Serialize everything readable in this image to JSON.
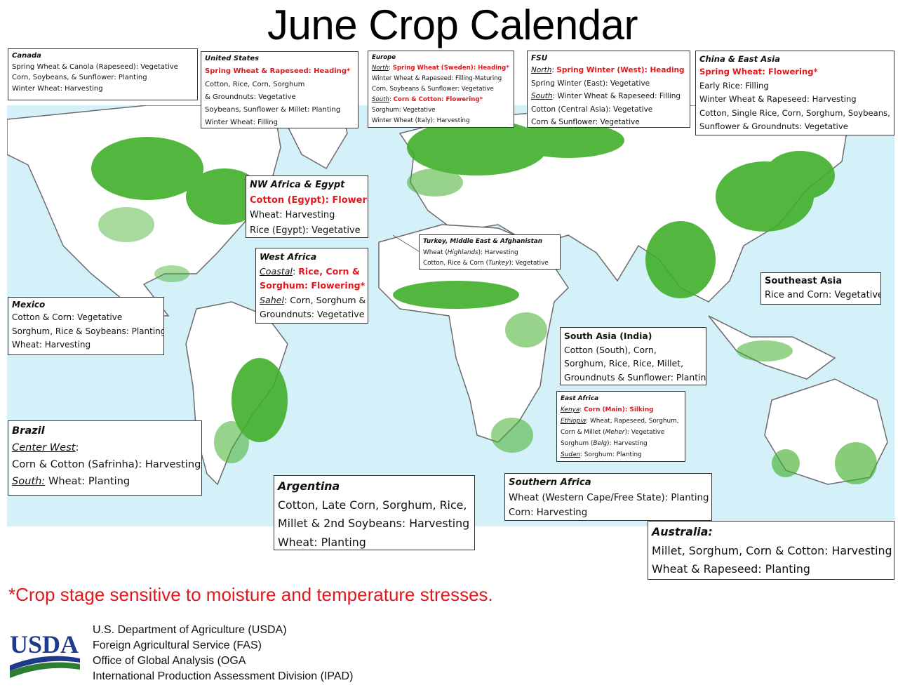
{
  "title": "June Crop Calendar",
  "regions": {
    "canada": {
      "header": "Canada",
      "lines": [
        "Spring Wheat & Canola (Rapeseed): Vegetative",
        "Corn, Soybeans, & Sunflower: Planting",
        "Winter Wheat: Harvesting"
      ]
    },
    "us": {
      "header": "United States",
      "red1": "Spring Wheat & Rapeseed: Heading*",
      "lines": [
        "Cotton, Rice, Corn, Sorghum",
        "& Groundnuts: Vegetative",
        "Soybeans, Sunflower & Millet: Planting",
        "Winter Wheat: Filling"
      ]
    },
    "europe": {
      "header": "Europe",
      "north_label": "North",
      "north_red": "Spring Wheat (Sweden): Heading*",
      "line2": "Winter Wheat & Rapeseed: Filling-Maturing",
      "line3": "Corn, Soybeans & Sunflower: Vegetative",
      "south_label": "South",
      "south_red": "Corn  & Cotton: Flowering*",
      "line5": "Sorghum: Vegetative",
      "line6": "Winter Wheat (Italy): Harvesting"
    },
    "fsu": {
      "header": "FSU",
      "north_label": "North",
      "north_red": "Spring Winter (West): Heading",
      "line2": "Spring Winter (East): Vegetative",
      "south_label": "South",
      "south_text": "Winter Wheat & Rapeseed: Filling",
      "line4": "Cotton (Central Asia): Vegetative",
      "line5": "Corn & Sunflower: Vegetative"
    },
    "china": {
      "header": "China & East Asia",
      "red1": "Spring Wheat: Flowering*",
      "lines": [
        "Early Rice: Filling",
        "Winter Wheat & Rapeseed: Harvesting",
        "Cotton, Single Rice, Corn, Sorghum, Soybeans,",
        "Sunflower & Groundnuts: Vegetative"
      ]
    },
    "nwafrica": {
      "header": "NW Africa & Egypt",
      "red1": "Cotton (Egypt): Flowering",
      "lines": [
        "Wheat: Harvesting",
        "Rice (Egypt): Vegetative"
      ]
    },
    "turkey": {
      "header": "Turkey, Middle East & Afghanistan",
      "l1a": "Wheat (",
      "l1b": "Highlands",
      "l1c": "): Harvesting",
      "l2a": "Cotton, Rice & Corn (",
      "l2b": "Turkey",
      "l2c": "): Vegetative"
    },
    "westafrica": {
      "header": "West Africa",
      "coastal_label": "Coastal",
      "coastal_red1": "Rice, Corn &",
      "coastal_red2": "Sorghum: Flowering*",
      "sahel_label": "Sahel",
      "sahel_text": "Corn, Sorghum &",
      "line4": "Groundnuts: Vegetative"
    },
    "seasia": {
      "header": "Southeast Asia",
      "lines": [
        "Rice and Corn: Vegetative"
      ]
    },
    "mexico": {
      "header": "Mexico",
      "lines": [
        "Cotton & Corn: Vegetative",
        "Sorghum, Rice & Soybeans: Planting",
        "Wheat: Harvesting"
      ]
    },
    "india": {
      "header": "South Asia (India)",
      "lines": [
        "Cotton (South), Corn,",
        "Sorghum, Rice, Rice, Millet,",
        "Groundnuts & Sunflower: Planting"
      ]
    },
    "eastafrica": {
      "header": "East Africa",
      "kenya_label": "Kenya",
      "kenya_red": "Corn (Main):  Silking",
      "ethiopia_label": "Ethiopia",
      "ethiopia_text": "Wheat, Rapeseed, Sorghum,",
      "l3a": "Corn & Millet (",
      "l3b": "Meher",
      "l3c": "): Vegetative",
      "l4a": "Sorghum (",
      "l4b": "Belg",
      "l4c": "): Harvesting",
      "sudan_label": "Sudan",
      "sudan_text": "Sorghum: Planting"
    },
    "brazil": {
      "header": "Brazil",
      "cw_label": "Center West",
      "cw_colon": ":",
      "line2": "Corn & Cotton (Safrinha): Harvesting",
      "south_label": "South:",
      "south_text": "Wheat: Planting"
    },
    "argentina": {
      "header": "Argentina",
      "lines": [
        "Cotton, Late Corn, Sorghum, Rice,",
        "Millet & 2nd Soybeans: Harvesting",
        "Wheat: Planting"
      ]
    },
    "safrica": {
      "header": "Southern Africa",
      "lines": [
        "Wheat (Western Cape/Free State): Planting",
        "Corn: Harvesting"
      ]
    },
    "australia": {
      "header": "Australia:",
      "lines": [
        "Millet, Sorghum, Corn & Cotton: Harvesting",
        "Wheat & Rapeseed: Planting"
      ]
    }
  },
  "footnote": "*Crop stage sensitive to moisture and temperature stresses.",
  "logo_text": "USDA",
  "agency_lines": [
    "U.S. Department of Agriculture (USDA)",
    "Foreign Agricultural Service (FAS)",
    "Office of Global Analysis (OGA",
    "International Production Assessment Division (IPAD)"
  ],
  "colors": {
    "ocean": "#d4f1f9",
    "land": "#ffffff",
    "crop": "#3fae2a",
    "highlight": "#e0191e",
    "logo_blue": "#1f3a8a",
    "logo_green": "#2e7d32"
  }
}
